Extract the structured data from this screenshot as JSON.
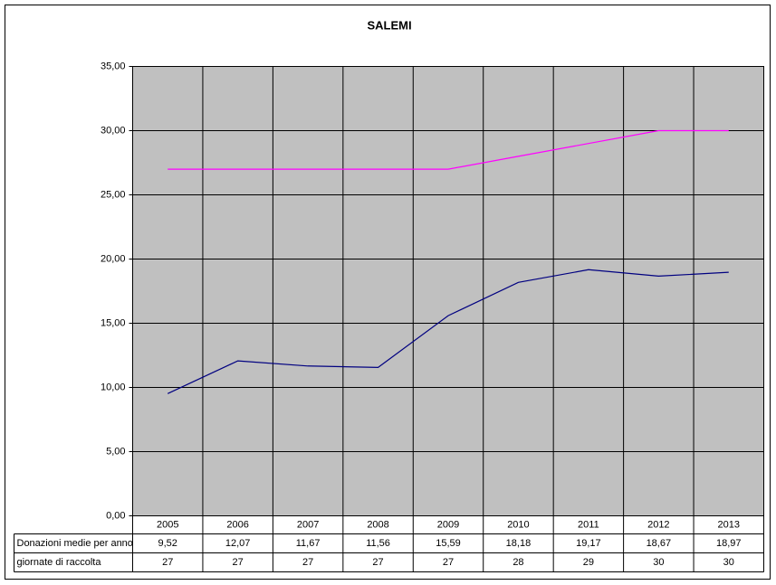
{
  "chart_data": {
    "type": "line",
    "title": "SALEMI",
    "categories": [
      "2005",
      "2006",
      "2007",
      "2008",
      "2009",
      "2010",
      "2011",
      "2012",
      "2013"
    ],
    "series": [
      {
        "name": "Donazioni medie per anno",
        "color": "#000080",
        "values": [
          9.52,
          12.07,
          11.67,
          11.56,
          15.59,
          18.18,
          19.17,
          18.67,
          18.97
        ],
        "value_labels": [
          "9,52",
          "12,07",
          "11,67",
          "11,56",
          "15,59",
          "18,18",
          "19,17",
          "18,67",
          "18,97"
        ]
      },
      {
        "name": "giornate di raccolta",
        "color": "#ff00ff",
        "values": [
          27,
          27,
          27,
          27,
          27,
          28,
          29,
          30,
          30
        ]
      }
    ],
    "ylim": [
      0,
      35
    ],
    "yticks": [
      {
        "value": 0,
        "label": "0,00"
      },
      {
        "value": 5,
        "label": "5,00"
      },
      {
        "value": 10,
        "label": "10,00"
      },
      {
        "value": 15,
        "label": "15,00"
      },
      {
        "value": 20,
        "label": "20,00"
      },
      {
        "value": 25,
        "label": "25,00"
      },
      {
        "value": 30,
        "label": "30,00"
      },
      {
        "value": 35,
        "label": "35,00"
      }
    ],
    "grid": true,
    "plot_background": "#c0c0c0"
  }
}
